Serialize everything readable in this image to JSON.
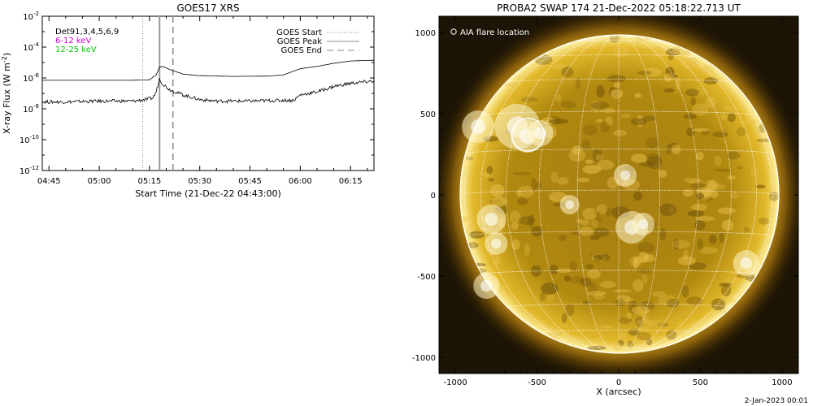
{
  "chart_data": [
    {
      "type": "line",
      "title": "GOES17 XRS",
      "xlabel": "Start Time (21-Dec-22 04:43:00)",
      "ylabel": "X-ray Flux (W m",
      "ylabel_exponent": "-2",
      "ylabel_close": ")",
      "yscale": "log",
      "ylim_exponent": [
        -12,
        -2
      ],
      "y_tick_exponents": [
        -2,
        -4,
        -6,
        -8,
        -10,
        -12
      ],
      "y_tick_base": "10",
      "xlim": [
        "04:43",
        "06:22"
      ],
      "x_ticks": [
        "04:45",
        "05:00",
        "05:15",
        "05:30",
        "05:45",
        "06:00",
        "06:15"
      ],
      "legend_left": [
        {
          "text": "Det91,3,4,5,6,9",
          "color": "#000000"
        },
        {
          "text": "6-12 keV",
          "color": "#cc00cc"
        },
        {
          "text": "12-25 keV",
          "color": "#00cc00"
        }
      ],
      "legend_right": [
        {
          "text": "GOES Start",
          "style": "dotted"
        },
        {
          "text": "GOES Peak",
          "style": "solid"
        },
        {
          "text": "GOES End",
          "style": "dashed"
        }
      ],
      "vlines": [
        {
          "x": "05:13",
          "style": "dotted"
        },
        {
          "x": "05:18",
          "style": "solid"
        },
        {
          "x": "05:22",
          "style": "dashed"
        }
      ],
      "series": [
        {
          "color": "#000000",
          "x": [
            "04:43",
            "04:50",
            "05:00",
            "05:10",
            "05:15",
            "05:17",
            "05:18",
            "05:19",
            "05:21",
            "05:25",
            "05:30",
            "05:40",
            "05:50",
            "05:55",
            "06:00",
            "06:05",
            "06:10",
            "06:15",
            "06:22"
          ],
          "y_exp": [
            -6.15,
            -6.15,
            -6.15,
            -6.15,
            -6.12,
            -5.8,
            -5.3,
            -5.25,
            -5.45,
            -5.75,
            -5.85,
            -5.9,
            -5.88,
            -5.8,
            -5.4,
            -5.25,
            -5.05,
            -4.9,
            -4.85
          ]
        },
        {
          "color": "#000000",
          "noisy": true,
          "x": [
            "04:43",
            "04:50",
            "05:00",
            "05:10",
            "05:14",
            "05:16",
            "05:17",
            "05:18",
            "05:19",
            "05:21",
            "05:25",
            "05:30",
            "05:35",
            "05:45",
            "05:55",
            "05:58",
            "06:00",
            "06:05",
            "06:10",
            "06:15",
            "06:22"
          ],
          "y_exp": [
            -7.55,
            -7.55,
            -7.5,
            -7.5,
            -7.4,
            -7.3,
            -6.9,
            -6.05,
            -6.4,
            -6.75,
            -7.1,
            -7.4,
            -7.5,
            -7.5,
            -7.45,
            -7.45,
            -7.1,
            -6.9,
            -6.55,
            -6.35,
            -6.2
          ]
        }
      ]
    },
    {
      "type": "heatmap",
      "title": "PROBA2 SWAP 174 21-Dec-2022 05:18:22.713 UT",
      "xlabel": "X (arcsec)",
      "x_ticks": [
        -1000,
        -500,
        0,
        500,
        1000
      ],
      "y_ticks": [
        1000,
        500,
        0,
        -500,
        -1000
      ],
      "xlim": [
        -1100,
        1100
      ],
      "ylim": [
        -1100,
        1100
      ],
      "solar_radius_arcsec": 975,
      "grid": true,
      "colormap": "sdo-aia-171-gold",
      "legend": "AIA flare location",
      "flare_location_arcsec": {
        "x": -555,
        "y": 370,
        "r": 100
      },
      "timestamp": "2-Jan-2023 00:01"
    }
  ]
}
